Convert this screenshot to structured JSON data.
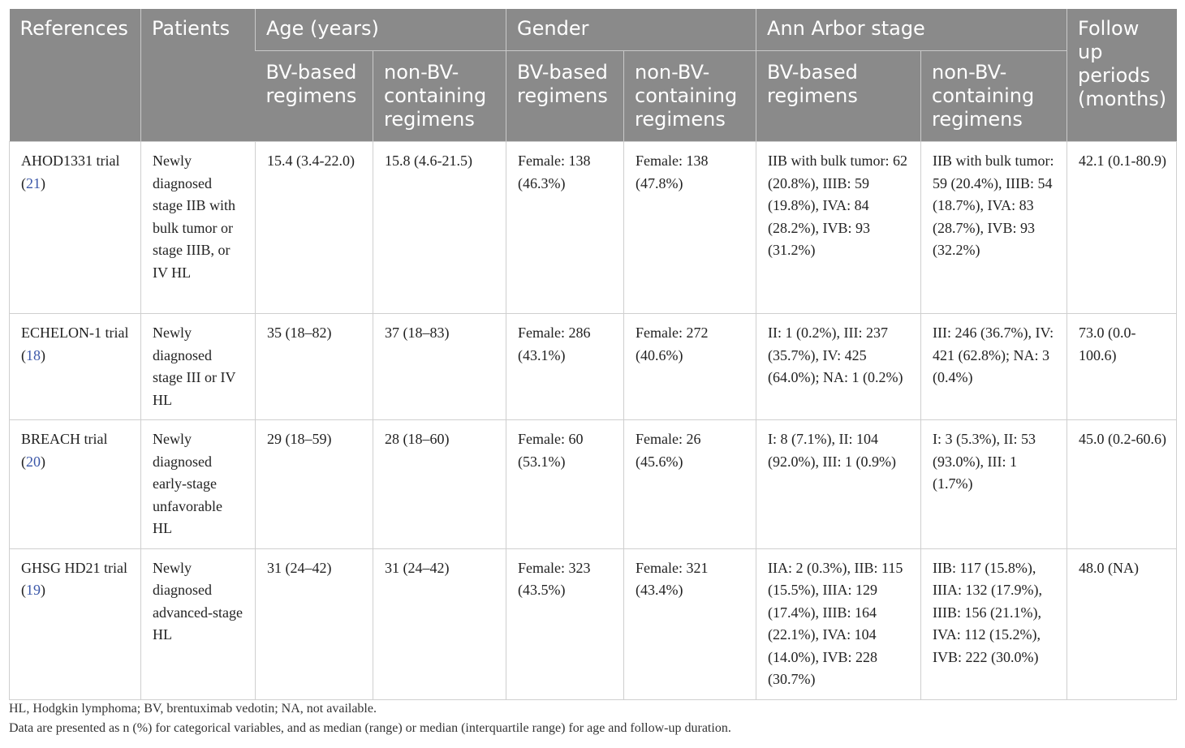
{
  "headers": {
    "references": "References",
    "patients": "Patients",
    "age": "Age (years)",
    "gender": "Gender",
    "stage": "Ann Arbor stage",
    "follow": "Follow up periods (months)",
    "bv": "BV-based regimens",
    "nonbv": "non-BV-containing regimens"
  },
  "rows": [
    {
      "ref_name": "AHOD1331 trial (",
      "ref_num": "21",
      "ref_close": ")",
      "patients": "Newly diagnosed stage IIB with bulk tumor or stage IIIB, or IV HL",
      "age_bv": "15.4 (3.4-22.0)",
      "age_nonbv": "15.8 (4.6-21.5)",
      "gender_bv": "Female: 138 (46.3%)",
      "gender_nonbv": "Female: 138 (47.8%)",
      "stage_bv": "IIB with bulk tumor: 62 (20.8%), IIIB: 59 (19.8%), IVA: 84 (28.2%), IVB: 93 (31.2%)",
      "stage_nonbv": "IIB with bulk tumor: 59 (20.4%), IIIB: 54 (18.7%), IVA: 83 (28.7%), IVB: 93 (32.2%)",
      "follow": "42.1 (0.1-80.9)"
    },
    {
      "ref_name": "ECHELON-1 trial (",
      "ref_num": "18",
      "ref_close": ")",
      "patients": "Newly diagnosed stage III or IV HL",
      "age_bv": "35 (18–82)",
      "age_nonbv": "37 (18–83)",
      "gender_bv": "Female: 286 (43.1%)",
      "gender_nonbv": "Female: 272 (40.6%)",
      "stage_bv": "II: 1 (0.2%), III: 237 (35.7%), IV: 425 (64.0%); NA: 1 (0.2%)",
      "stage_nonbv": "III: 246 (36.7%), IV: 421 (62.8%); NA: 3 (0.4%)",
      "follow": "73.0 (0.0-100.6)"
    },
    {
      "ref_name": "BREACH trial (",
      "ref_num": "20",
      "ref_close": ")",
      "patients": "Newly diagnosed early-stage unfavorable HL",
      "age_bv": "29 (18–59)",
      "age_nonbv": "28 (18–60)",
      "gender_bv": "Female: 60 (53.1%)",
      "gender_nonbv": "Female: 26 (45.6%)",
      "stage_bv": "I: 8 (7.1%), II: 104 (92.0%), III: 1 (0.9%)",
      "stage_nonbv": "I: 3 (5.3%), II: 53 (93.0%), III: 1 (1.7%)",
      "follow": "45.0 (0.2-60.6)"
    },
    {
      "ref_name": "GHSG HD21 trial (",
      "ref_num": "19",
      "ref_close": ")",
      "patients": "Newly diagnosed advanced-stage HL",
      "age_bv": "31 (24–42)",
      "age_nonbv": "31 (24–42)",
      "gender_bv": "Female: 323 (43.5%)",
      "gender_nonbv": "Female: 321 (43.4%)",
      "stage_bv": "IIA: 2 (0.3%), IIB: 115 (15.5%), IIIA: 129 (17.4%), IIIB: 164 (22.1%), IVA: 104 (14.0%), IVB: 228 (30.7%)",
      "stage_nonbv": "IIB: 117 (15.8%), IIIA: 132 (17.9%), IIIB: 156 (21.1%), IVA: 112 (15.2%), IVB: 222 (30.0%)",
      "follow": "48.0 (NA)"
    }
  ],
  "footnotes": [
    "HL, Hodgkin lymphoma; BV, brentuximab vedotin; NA, not available.",
    "Data are presented as n (%) for categorical variables, and as median (range) or median (interquartile range) for age and follow-up duration."
  ],
  "colors": {
    "header_bg": "#8a8a8a",
    "header_text": "#ffffff",
    "link": "#3b57a8",
    "border": "#cfcfcf"
  }
}
